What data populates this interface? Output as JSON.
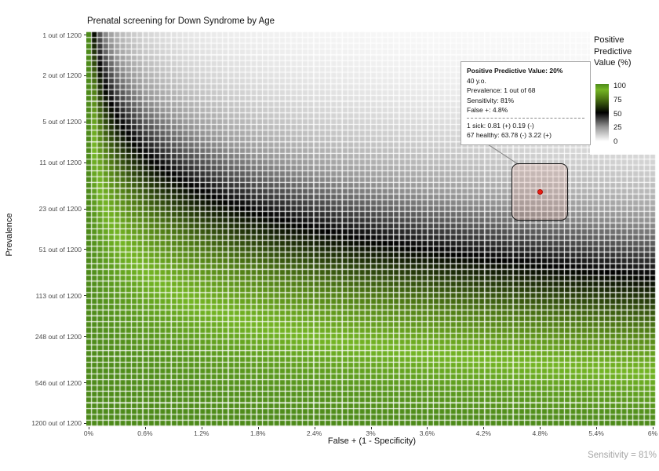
{
  "title": "Prenatal screening for Down Syndrome by Age",
  "axes": {
    "x": {
      "label": "False + (1 - Specificity)",
      "ticks": [
        "0%",
        "0.6%",
        "1.2%",
        "1.8%",
        "2.4%",
        "3%",
        "3.6%",
        "4.2%",
        "4.8%",
        "5.4%",
        "6%"
      ]
    },
    "y": {
      "label": "Prevalence",
      "ticks": [
        "1 out of 1200",
        "2 out of 1200",
        "5 out of 1200",
        "11 out of 1200",
        "23 out of 1200",
        "51 out of 1200",
        "113 out of 1200",
        "248 out of 1200",
        "546 out of 1200",
        "1200 out of 1200"
      ]
    }
  },
  "legend": {
    "title_lines": [
      "Positive",
      "Predictive",
      "Value (%)"
    ],
    "ticks": [
      "100",
      "75",
      "50",
      "25",
      "0"
    ]
  },
  "tooltip": {
    "title": "Positive Predictive Value: 20%",
    "age": "40 y.o.",
    "prevalence": "Prevalence: 1 out of 68",
    "sensitivity": "Sensitivity: 81%",
    "false_positive": "False +: 4.8%",
    "sick_line": "1 sick: 0.81 (+) 0.19 (-)",
    "healthy_line": "67 healthy: 63.78 (-) 3.22 (+)"
  },
  "footnote": "Sensitivity = 81%",
  "chart_data": {
    "type": "heatmap",
    "title": "Prenatal screening for Down Syndrome by Age",
    "xlabel": "False + (1 - Specificity)",
    "ylabel": "Prevalence",
    "value_unit": "Positive Predictive Value (%)",
    "x_range_percent": [
      0,
      6
    ],
    "x_ticks_percent": [
      0,
      0.6,
      1.2,
      1.8,
      2.4,
      3,
      3.6,
      4.2,
      4.8,
      5.4,
      6
    ],
    "y_scale": "log",
    "y_range_out_of_1200": [
      1,
      1200
    ],
    "y_ticks_out_of_1200": [
      1,
      2,
      5,
      11,
      23,
      51,
      113,
      248,
      546,
      1200
    ],
    "n_cols": 100,
    "n_rows": 68,
    "sensitivity": 0.81,
    "value_formula": "PPV% = 100 * sensitivity*prevalence / (sensitivity*prevalence + FPR*(1-prevalence))",
    "color_scale": [
      {
        "value": 0,
        "color": "#ffffff"
      },
      {
        "value": 25,
        "color": "#969696"
      },
      {
        "value": 50,
        "color": "#000000"
      },
      {
        "value": 75,
        "color": "#4e7a14"
      },
      {
        "value": 90,
        "color": "#74b524"
      },
      {
        "value": 100,
        "color": "#4d8a1a"
      }
    ],
    "grid_color": "#ffffff",
    "highlighted_point": {
      "false_positive_percent": 4.8,
      "prevalence": "1 out of 68",
      "prevalence_out_of_1200": 17.65,
      "ppv_percent": 20,
      "age_years": 40,
      "marker_color": "#ea1c12"
    }
  }
}
